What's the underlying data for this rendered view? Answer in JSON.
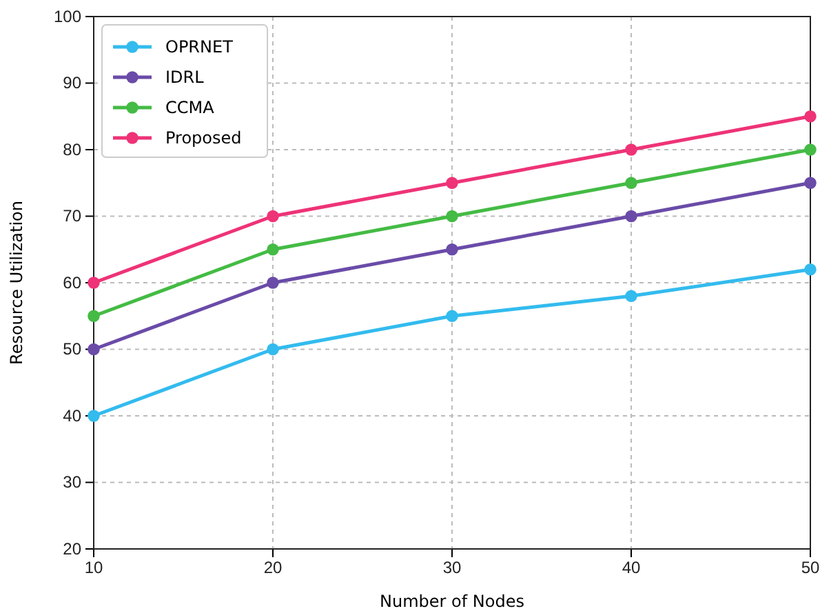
{
  "chart_data": {
    "type": "line",
    "xlabel": "Number of Nodes",
    "ylabel": "Resource Utilization",
    "x": [
      10,
      20,
      30,
      40,
      50
    ],
    "series": [
      {
        "name": "OPRNET",
        "color": "#33bbee",
        "values": [
          40,
          50,
          55,
          58,
          62
        ]
      },
      {
        "name": "IDRL",
        "color": "#6a4ba8",
        "values": [
          50,
          60,
          65,
          70,
          75
        ]
      },
      {
        "name": "CCMA",
        "color": "#44bb44",
        "values": [
          55,
          65,
          70,
          75,
          80
        ]
      },
      {
        "name": "Proposed",
        "color": "#ee3377",
        "values": [
          60,
          70,
          75,
          80,
          85
        ]
      }
    ],
    "xlim": [
      10,
      50
    ],
    "xticks": [
      10,
      20,
      30,
      40,
      50
    ],
    "ylim": [
      20,
      100
    ],
    "yticks": [
      20,
      30,
      40,
      50,
      60,
      70,
      80,
      90,
      100
    ],
    "grid": true,
    "legend": "top left",
    "marker": "circle",
    "line_style": "solid"
  }
}
